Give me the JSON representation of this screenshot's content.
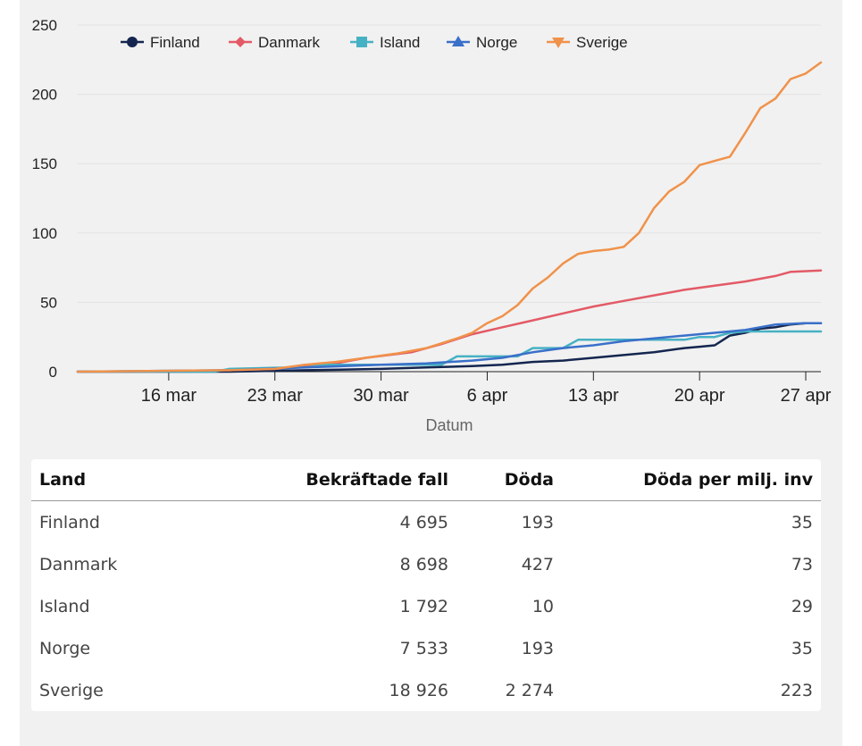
{
  "chart_data": {
    "type": "line",
    "title": "",
    "xlabel": "Datum",
    "ylabel": "",
    "ylim": [
      0,
      250
    ],
    "yticks": [
      "0",
      "50",
      "100",
      "150",
      "200",
      "250"
    ],
    "x_range": [
      "2020-03-10",
      "2020-04-28"
    ],
    "xticks": [
      {
        "date": "2020-03-16",
        "label": "16 mar"
      },
      {
        "date": "2020-03-23",
        "label": "23 mar"
      },
      {
        "date": "2020-03-30",
        "label": "30 mar"
      },
      {
        "date": "2020-04-06",
        "label": "6 apr"
      },
      {
        "date": "2020-04-13",
        "label": "13 apr"
      },
      {
        "date": "2020-04-20",
        "label": "20 apr"
      },
      {
        "date": "2020-04-27",
        "label": "27 apr"
      }
    ],
    "legend_position": "top",
    "grid": true,
    "series": [
      {
        "name": "Finland",
        "color": "#14264f",
        "marker": "circle",
        "dates": [
          "2020-03-10",
          "2020-03-20",
          "2020-03-25",
          "2020-03-30",
          "2020-04-02",
          "2020-04-05",
          "2020-04-07",
          "2020-04-09",
          "2020-04-11",
          "2020-04-13",
          "2020-04-15",
          "2020-04-17",
          "2020-04-19",
          "2020-04-20",
          "2020-04-21",
          "2020-04-22",
          "2020-04-23",
          "2020-04-24",
          "2020-04-25",
          "2020-04-26",
          "2020-04-27",
          "2020-04-28"
        ],
        "values": [
          0,
          0,
          1,
          2,
          3,
          4,
          5,
          7,
          8,
          10,
          12,
          14,
          17,
          18,
          19,
          26,
          28,
          31,
          32,
          34,
          35,
          35
        ]
      },
      {
        "name": "Danmark",
        "color": "#e35a66",
        "marker": "diamond",
        "dates": [
          "2020-03-10",
          "2020-03-15",
          "2020-03-20",
          "2020-03-23",
          "2020-03-25",
          "2020-03-27",
          "2020-03-29",
          "2020-04-01",
          "2020-04-03",
          "2020-04-05",
          "2020-04-07",
          "2020-04-09",
          "2020-04-11",
          "2020-04-13",
          "2020-04-15",
          "2020-04-17",
          "2020-04-19",
          "2020-04-21",
          "2020-04-23",
          "2020-04-25",
          "2020-04-26",
          "2020-04-28"
        ],
        "values": [
          0,
          0,
          1,
          2,
          4,
          6,
          10,
          14,
          20,
          27,
          32,
          37,
          42,
          47,
          51,
          55,
          59,
          62,
          65,
          69,
          72,
          73
        ]
      },
      {
        "name": "Island",
        "color": "#47b1c4",
        "marker": "square",
        "dates": [
          "2020-03-10",
          "2020-03-19",
          "2020-03-20",
          "2020-03-24",
          "2020-03-25",
          "2020-04-03",
          "2020-04-04",
          "2020-04-08",
          "2020-04-09",
          "2020-04-11",
          "2020-04-12",
          "2020-04-19",
          "2020-04-20",
          "2020-04-21",
          "2020-04-22",
          "2020-04-23",
          "2020-04-28"
        ],
        "values": [
          0,
          0,
          2,
          3,
          5,
          5,
          11,
          11,
          17,
          17,
          23,
          23,
          25,
          25,
          28,
          29,
          29
        ]
      },
      {
        "name": "Norge",
        "color": "#3a70c9",
        "marker": "triangle-up",
        "dates": [
          "2020-03-10",
          "2020-03-20",
          "2020-03-25",
          "2020-03-30",
          "2020-04-02",
          "2020-04-05",
          "2020-04-07",
          "2020-04-09",
          "2020-04-11",
          "2020-04-13",
          "2020-04-15",
          "2020-04-17",
          "2020-04-19",
          "2020-04-21",
          "2020-04-23",
          "2020-04-25",
          "2020-04-27",
          "2020-04-28"
        ],
        "values": [
          0,
          1,
          3,
          5,
          6,
          8,
          10,
          14,
          17,
          19,
          22,
          24,
          26,
          28,
          30,
          34,
          35,
          35
        ]
      },
      {
        "name": "Sverige",
        "color": "#f0924a",
        "marker": "triangle-down",
        "dates": [
          "2020-03-10",
          "2020-03-20",
          "2020-03-23",
          "2020-03-25",
          "2020-03-27",
          "2020-03-29",
          "2020-03-31",
          "2020-04-02",
          "2020-04-04",
          "2020-04-05",
          "2020-04-06",
          "2020-04-07",
          "2020-04-08",
          "2020-04-09",
          "2020-04-10",
          "2020-04-11",
          "2020-04-12",
          "2020-04-13",
          "2020-04-14",
          "2020-04-15",
          "2020-04-16",
          "2020-04-17",
          "2020-04-18",
          "2020-04-19",
          "2020-04-20",
          "2020-04-21",
          "2020-04-22",
          "2020-04-23",
          "2020-04-24",
          "2020-04-25",
          "2020-04-26",
          "2020-04-27",
          "2020-04-28"
        ],
        "values": [
          0,
          1,
          2,
          5,
          7,
          10,
          13,
          17,
          24,
          28,
          35,
          40,
          48,
          60,
          68,
          78,
          85,
          87,
          88,
          90,
          100,
          118,
          130,
          137,
          149,
          152,
          155,
          172,
          190,
          197,
          211,
          215,
          223
        ]
      }
    ]
  },
  "table": {
    "headers": {
      "land": "Land",
      "fall": "Bekräftade fall",
      "doda": "Döda",
      "per_milj": "Döda per milj. inv"
    },
    "rows": [
      {
        "land": "Finland",
        "fall": "4 695",
        "doda": "193",
        "per_milj": "35"
      },
      {
        "land": "Danmark",
        "fall": "8 698",
        "doda": "427",
        "per_milj": "73"
      },
      {
        "land": "Island",
        "fall": "1 792",
        "doda": "10",
        "per_milj": "29"
      },
      {
        "land": "Norge",
        "fall": "7 533",
        "doda": "193",
        "per_milj": "35"
      },
      {
        "land": "Sverige",
        "fall": "18 926",
        "doda": "2 274",
        "per_milj": "223"
      }
    ]
  }
}
